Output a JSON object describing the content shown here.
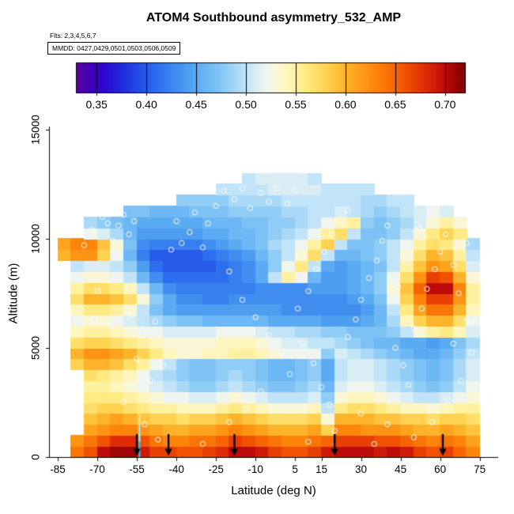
{
  "header": {
    "title": "ATOM4 Southbound asymmetry_532_AMP",
    "flights": "Flts: 2,3,4,5,6,7",
    "mmdd": "MMDD: 0427,0429,0501,0503,0506,0509"
  },
  "colorbar": {
    "domain": [
      0.33,
      0.72
    ],
    "ticks": [
      0.35,
      0.4,
      0.45,
      0.5,
      0.55,
      0.6,
      0.65,
      0.7
    ],
    "tick_labels": [
      "0.35",
      "0.40",
      "0.45",
      "0.50",
      "0.55",
      "0.60",
      "0.65",
      "0.70"
    ],
    "stops": [
      {
        "t": 0.0,
        "c": "#5A00A0"
      },
      {
        "t": 0.06,
        "c": "#3000CE"
      },
      {
        "t": 0.12,
        "c": "#1E2EE0"
      },
      {
        "t": 0.2,
        "c": "#2A6BEE"
      },
      {
        "t": 0.3,
        "c": "#55A8F2"
      },
      {
        "t": 0.38,
        "c": "#8CCBF6"
      },
      {
        "t": 0.44,
        "c": "#C6E6F8"
      },
      {
        "t": 0.49,
        "c": "#F2F6EE"
      },
      {
        "t": 0.53,
        "c": "#FFF8C8"
      },
      {
        "t": 0.58,
        "c": "#FFEE8C"
      },
      {
        "t": 0.64,
        "c": "#FFD452"
      },
      {
        "t": 0.7,
        "c": "#FFAE24"
      },
      {
        "t": 0.77,
        "c": "#FF850A"
      },
      {
        "t": 0.84,
        "c": "#F25702"
      },
      {
        "t": 0.9,
        "c": "#DE2A06"
      },
      {
        "t": 0.95,
        "c": "#BC0A0A"
      },
      {
        "t": 1.0,
        "c": "#7E0000"
      }
    ]
  },
  "axes": {
    "x": {
      "label": "Latitude (deg N)",
      "ticks": [
        -85,
        -70,
        -55,
        -40,
        -25,
        -10,
        5,
        15,
        30,
        45,
        60,
        75
      ],
      "range": [
        -88,
        82
      ]
    },
    "y": {
      "label": "Altitude (m)",
      "ticks": [
        0,
        5000,
        10000,
        15000
      ],
      "range": [
        0,
        15500
      ]
    }
  },
  "chart_data": {
    "type": "heatmap",
    "value_name": "asymmetry_532_AMP",
    "x_bin_centers": [
      -82.5,
      -77.5,
      -72.5,
      -67.5,
      -62.5,
      -57.5,
      -52.5,
      -47.5,
      -42.5,
      -37.5,
      -32.5,
      -27.5,
      -22.5,
      -17.5,
      -12.5,
      -7.5,
      -2.5,
      2.5,
      7.5,
      12.5,
      17.5,
      22.5,
      27.5,
      32.5,
      37.5,
      42.5,
      47.5,
      52.5,
      57.5,
      62.5,
      67.5,
      72.5
    ],
    "x_bin_width": 5,
    "y_bin_centers": [
      250,
      750,
      1250,
      1750,
      2250,
      2750,
      3250,
      3750,
      4250,
      4750,
      5250,
      5750,
      6250,
      6750,
      7250,
      7750,
      8250,
      8750,
      9250,
      9750,
      10250,
      10750,
      11250,
      11750,
      12250,
      12750
    ],
    "y_bin_width": 500,
    "values": [
      [
        null,
        0.64,
        0.66,
        0.7,
        0.71,
        0.71,
        0.69,
        0.67,
        0.67,
        0.66,
        0.66,
        0.67,
        0.68,
        0.7,
        0.7,
        0.69,
        0.67,
        0.66,
        0.66,
        0.67,
        0.69,
        0.7,
        0.7,
        0.7,
        0.69,
        0.7,
        0.69,
        0.67,
        0.66,
        0.67,
        0.65,
        0.63
      ],
      [
        null,
        0.62,
        0.64,
        0.66,
        0.68,
        0.68,
        0.66,
        0.64,
        0.63,
        0.63,
        0.64,
        0.64,
        0.65,
        0.67,
        0.66,
        0.65,
        0.64,
        0.63,
        0.63,
        0.64,
        0.65,
        0.67,
        0.67,
        0.67,
        0.66,
        0.66,
        0.65,
        0.64,
        0.63,
        0.64,
        0.63,
        0.61
      ],
      [
        null,
        null,
        0.61,
        0.62,
        0.63,
        0.63,
        0.62,
        0.61,
        0.6,
        0.6,
        0.61,
        0.61,
        0.62,
        0.63,
        0.62,
        0.61,
        0.6,
        0.6,
        0.6,
        0.61,
        0.58,
        0.63,
        0.63,
        0.62,
        0.62,
        0.62,
        0.61,
        0.6,
        0.6,
        0.61,
        0.6,
        0.59
      ],
      [
        null,
        null,
        0.59,
        0.6,
        0.61,
        0.6,
        0.59,
        0.58,
        0.58,
        0.57,
        0.58,
        0.58,
        0.59,
        0.6,
        0.59,
        0.58,
        0.57,
        0.57,
        0.57,
        0.58,
        0.53,
        0.6,
        0.6,
        0.6,
        0.59,
        0.59,
        0.58,
        0.58,
        0.57,
        0.58,
        0.58,
        0.57
      ],
      [
        null,
        null,
        0.57,
        0.58,
        0.58,
        0.57,
        0.56,
        0.55,
        0.55,
        0.54,
        0.54,
        0.54,
        0.55,
        0.56,
        0.55,
        0.54,
        0.53,
        0.53,
        0.53,
        0.54,
        0.5,
        0.56,
        0.57,
        0.57,
        0.56,
        0.55,
        0.54,
        0.54,
        0.53,
        0.54,
        0.55,
        0.55
      ],
      [
        null,
        null,
        0.56,
        0.56,
        0.56,
        0.55,
        0.54,
        0.53,
        0.52,
        0.52,
        0.51,
        0.51,
        0.52,
        0.53,
        0.52,
        0.51,
        0.5,
        0.5,
        0.5,
        0.51,
        0.48,
        0.53,
        0.54,
        0.54,
        0.53,
        0.52,
        0.51,
        0.5,
        0.5,
        0.51,
        0.52,
        0.53
      ],
      [
        null,
        null,
        0.55,
        0.55,
        0.54,
        0.53,
        0.52,
        0.51,
        0.5,
        0.49,
        0.48,
        0.48,
        0.49,
        0.5,
        0.49,
        0.48,
        0.47,
        0.47,
        0.48,
        0.49,
        0.46,
        0.51,
        0.52,
        0.52,
        0.51,
        0.5,
        0.49,
        0.48,
        0.47,
        0.48,
        0.5,
        0.52
      ],
      [
        null,
        null,
        0.57,
        0.56,
        0.55,
        0.54,
        0.52,
        0.5,
        0.49,
        0.48,
        0.47,
        0.47,
        0.48,
        0.49,
        0.48,
        0.47,
        0.46,
        0.46,
        0.47,
        0.48,
        0.45,
        0.5,
        0.51,
        0.51,
        0.5,
        0.49,
        0.48,
        0.47,
        0.46,
        0.47,
        0.49,
        0.51
      ],
      [
        null,
        0.58,
        0.6,
        0.6,
        0.59,
        0.57,
        0.55,
        0.52,
        0.5,
        0.48,
        0.47,
        0.47,
        0.48,
        0.48,
        0.48,
        0.47,
        0.46,
        0.46,
        0.47,
        0.48,
        0.45,
        0.5,
        0.51,
        0.51,
        0.5,
        0.49,
        0.48,
        0.47,
        0.46,
        0.47,
        0.49,
        0.51
      ],
      [
        null,
        0.6,
        0.62,
        0.62,
        0.61,
        0.6,
        0.58,
        0.56,
        0.54,
        0.53,
        0.53,
        0.54,
        0.54,
        0.55,
        0.55,
        0.54,
        0.53,
        0.52,
        0.52,
        0.52,
        0.48,
        0.51,
        0.5,
        0.49,
        0.48,
        0.47,
        0.46,
        0.45,
        0.45,
        0.46,
        0.48,
        0.5
      ],
      [
        null,
        0.57,
        0.58,
        0.58,
        0.57,
        0.56,
        0.55,
        0.54,
        0.53,
        0.53,
        0.53,
        0.53,
        0.54,
        0.54,
        0.54,
        0.53,
        0.52,
        0.51,
        0.51,
        0.5,
        0.5,
        0.49,
        0.48,
        0.47,
        0.46,
        0.46,
        0.45,
        0.45,
        0.44,
        0.45,
        0.47,
        0.49
      ],
      [
        null,
        0.54,
        0.55,
        0.55,
        0.54,
        0.53,
        0.52,
        0.52,
        0.51,
        0.51,
        0.51,
        0.51,
        0.52,
        0.52,
        0.52,
        0.51,
        0.5,
        0.5,
        0.49,
        0.49,
        0.48,
        0.48,
        0.47,
        0.47,
        0.47,
        0.48,
        0.5,
        0.53,
        0.55,
        0.56,
        0.54,
        0.51
      ],
      [
        null,
        0.52,
        0.53,
        0.53,
        0.52,
        0.51,
        0.5,
        0.49,
        0.48,
        0.47,
        0.47,
        0.46,
        0.46,
        0.46,
        0.46,
        0.46,
        0.45,
        0.45,
        0.45,
        0.45,
        0.44,
        0.44,
        0.44,
        0.45,
        0.46,
        0.49,
        0.54,
        0.58,
        0.6,
        0.6,
        0.57,
        0.52
      ],
      [
        null,
        0.54,
        0.56,
        0.56,
        0.55,
        0.53,
        0.5,
        0.47,
        0.45,
        0.44,
        0.44,
        0.44,
        0.44,
        0.44,
        0.44,
        0.44,
        0.44,
        0.43,
        0.43,
        0.43,
        0.43,
        0.43,
        0.43,
        0.44,
        0.46,
        0.5,
        0.56,
        0.61,
        0.64,
        0.64,
        0.6,
        0.54
      ],
      [
        null,
        0.57,
        0.6,
        0.6,
        0.59,
        0.57,
        0.53,
        0.48,
        0.45,
        0.43,
        0.43,
        0.42,
        0.42,
        0.43,
        0.43,
        0.43,
        0.43,
        0.43,
        0.43,
        0.43,
        0.43,
        0.43,
        0.44,
        0.45,
        0.47,
        0.52,
        0.58,
        0.63,
        0.67,
        0.67,
        0.62,
        0.55
      ],
      [
        null,
        0.55,
        0.57,
        0.57,
        0.56,
        0.54,
        0.5,
        0.46,
        0.43,
        0.42,
        0.42,
        0.42,
        0.42,
        0.42,
        0.42,
        0.43,
        0.43,
        0.43,
        0.43,
        0.44,
        0.44,
        0.44,
        0.45,
        0.46,
        0.48,
        0.53,
        0.59,
        0.65,
        0.7,
        0.7,
        0.63,
        0.55
      ],
      [
        null,
        0.52,
        0.53,
        0.53,
        0.52,
        0.5,
        0.46,
        0.43,
        0.41,
        0.41,
        0.41,
        0.41,
        0.41,
        0.42,
        0.43,
        0.45,
        0.5,
        0.55,
        0.52,
        0.46,
        0.44,
        0.44,
        0.45,
        0.46,
        0.48,
        0.52,
        0.57,
        0.62,
        0.67,
        0.66,
        0.6,
        0.53
      ],
      [
        null,
        0.5,
        0.51,
        0.51,
        0.5,
        0.48,
        0.44,
        0.41,
        0.4,
        0.4,
        0.4,
        0.4,
        0.41,
        0.42,
        0.43,
        0.45,
        0.48,
        0.52,
        0.56,
        0.5,
        0.45,
        0.44,
        0.45,
        0.46,
        0.47,
        0.5,
        0.55,
        0.59,
        0.62,
        0.61,
        0.57,
        0.51
      ],
      [
        0.6,
        0.62,
        0.62,
        0.58,
        0.52,
        0.46,
        0.42,
        0.4,
        0.4,
        0.4,
        0.4,
        0.41,
        0.42,
        0.43,
        0.44,
        0.46,
        0.48,
        0.5,
        0.53,
        0.57,
        0.5,
        0.46,
        0.46,
        0.47,
        0.48,
        0.5,
        0.53,
        0.57,
        0.6,
        0.59,
        0.55,
        0.5
      ],
      [
        0.61,
        0.63,
        0.63,
        0.59,
        0.53,
        0.47,
        0.43,
        0.42,
        0.42,
        0.42,
        0.42,
        0.43,
        0.44,
        0.45,
        0.46,
        0.47,
        0.49,
        0.5,
        0.52,
        0.55,
        0.58,
        0.5,
        0.47,
        0.47,
        0.48,
        0.5,
        0.52,
        0.55,
        0.57,
        0.56,
        0.53,
        0.49
      ],
      [
        null,
        null,
        0.52,
        0.51,
        0.49,
        0.46,
        0.44,
        0.44,
        0.44,
        0.44,
        0.44,
        0.45,
        0.45,
        0.46,
        0.46,
        0.47,
        0.48,
        0.49,
        0.5,
        0.52,
        0.55,
        0.57,
        0.5,
        0.47,
        0.47,
        0.48,
        0.5,
        0.53,
        0.56,
        0.58,
        0.56,
        null
      ],
      [
        null,
        null,
        0.49,
        0.48,
        0.47,
        0.46,
        0.45,
        0.45,
        0.45,
        0.45,
        0.45,
        0.46,
        0.46,
        0.46,
        0.47,
        0.47,
        0.48,
        0.48,
        0.49,
        0.5,
        0.52,
        0.54,
        0.55,
        0.48,
        0.47,
        0.48,
        0.49,
        0.51,
        0.53,
        0.55,
        0.53,
        null
      ],
      [
        null,
        null,
        null,
        null,
        null,
        0.47,
        0.47,
        0.46,
        0.46,
        0.46,
        0.47,
        0.47,
        0.47,
        0.48,
        0.48,
        0.48,
        0.48,
        0.49,
        0.49,
        0.5,
        0.5,
        0.51,
        0.5,
        0.49,
        0.48,
        0.49,
        0.5,
        0.51,
        0.52,
        0.51,
        null,
        null
      ],
      [
        null,
        null,
        null,
        null,
        null,
        null,
        null,
        null,
        null,
        0.48,
        0.48,
        0.48,
        0.48,
        0.49,
        0.49,
        0.49,
        0.49,
        0.5,
        0.5,
        0.5,
        0.5,
        0.5,
        0.5,
        0.49,
        0.49,
        0.5,
        0.5,
        null,
        null,
        null,
        null,
        null
      ],
      [
        null,
        null,
        null,
        null,
        null,
        null,
        null,
        null,
        null,
        null,
        null,
        null,
        0.5,
        0.5,
        0.5,
        0.5,
        0.51,
        0.51,
        0.51,
        0.51,
        0.5,
        0.5,
        0.5,
        0.5,
        null,
        null,
        null,
        null,
        null,
        null,
        null,
        null
      ],
      [
        null,
        null,
        null,
        null,
        null,
        null,
        null,
        null,
        null,
        null,
        null,
        null,
        null,
        null,
        0.5,
        0.51,
        0.51,
        0.51,
        0.51,
        0.5,
        null,
        null,
        null,
        null,
        null,
        null,
        null,
        null,
        null,
        null,
        null,
        null
      ]
    ]
  },
  "markers": {
    "arrows_lat": [
      -55,
      -43,
      -18,
      20,
      61
    ],
    "arrow_color": "#000000",
    "circle_color": "#FFFFFF",
    "circles": [
      [
        -75,
        9700
      ],
      [
        -72,
        10400
      ],
      [
        -70,
        7600
      ],
      [
        -68,
        11000
      ],
      [
        -66,
        10700
      ],
      [
        -64,
        9900
      ],
      [
        -62,
        10600
      ],
      [
        -60,
        11100
      ],
      [
        -58,
        10200
      ],
      [
        -56,
        10800
      ],
      [
        -71,
        6300
      ],
      [
        -65,
        6000
      ],
      [
        -57,
        6500
      ],
      [
        -53,
        5800
      ],
      [
        -48,
        6200
      ],
      [
        -55,
        4500
      ],
      [
        -50,
        3500
      ],
      [
        -45,
        4200
      ],
      [
        -60,
        2500
      ],
      [
        -52,
        1500
      ],
      [
        -47,
        800
      ],
      [
        -42,
        9500
      ],
      [
        -40,
        10800
      ],
      [
        -38,
        9800
      ],
      [
        -35,
        10300
      ],
      [
        -33,
        11200
      ],
      [
        -30,
        9600
      ],
      [
        -28,
        10700
      ],
      [
        -25,
        11500
      ],
      [
        -22,
        12200
      ],
      [
        -18,
        11800
      ],
      [
        -15,
        12300
      ],
      [
        -12,
        11400
      ],
      [
        -8,
        12100
      ],
      [
        -5,
        11700
      ],
      [
        -2,
        12300
      ],
      [
        2,
        11600
      ],
      [
        5,
        12200
      ],
      [
        -20,
        8500
      ],
      [
        -15,
        7200
      ],
      [
        -10,
        6400
      ],
      [
        -5,
        5600
      ],
      [
        0,
        4800
      ],
      [
        3,
        3800
      ],
      [
        -8,
        3000
      ],
      [
        -14,
        2200
      ],
      [
        6,
        6800
      ],
      [
        10,
        7600
      ],
      [
        13,
        8600
      ],
      [
        16,
        9400
      ],
      [
        19,
        10200
      ],
      [
        22,
        10900
      ],
      [
        25,
        11300
      ],
      [
        8,
        5200
      ],
      [
        12,
        4300
      ],
      [
        15,
        3200
      ],
      [
        18,
        2400
      ],
      [
        20,
        1200
      ],
      [
        25,
        5500
      ],
      [
        28,
        6300
      ],
      [
        30,
        7200
      ],
      [
        33,
        8200
      ],
      [
        36,
        9000
      ],
      [
        38,
        9900
      ],
      [
        40,
        10600
      ],
      [
        43,
        5000
      ],
      [
        46,
        4200
      ],
      [
        48,
        3300
      ],
      [
        50,
        5900
      ],
      [
        53,
        6800
      ],
      [
        55,
        7700
      ],
      [
        58,
        8600
      ],
      [
        60,
        9400
      ],
      [
        62,
        10200
      ],
      [
        65,
        8800
      ],
      [
        67,
        7500
      ],
      [
        70,
        6200
      ],
      [
        72,
        4800
      ],
      [
        68,
        3500
      ],
      [
        63,
        2600
      ],
      [
        57,
        1600
      ],
      [
        50,
        900
      ],
      [
        44,
        7800
      ],
      [
        47,
        8900
      ],
      [
        52,
        10500
      ],
      [
        35,
        600
      ],
      [
        10,
        700
      ],
      [
        -30,
        600
      ],
      [
        -20,
        1600
      ],
      [
        30,
        2000
      ],
      [
        40,
        1500
      ],
      [
        65,
        5200
      ],
      [
        70,
        9800
      ]
    ],
    "streak": {
      "lat": -54,
      "segments": [
        {
          "alt0": 0,
          "alt1": 700,
          "color": "#30B8F0"
        },
        {
          "alt0": 700,
          "alt1": 1500,
          "color": "#90E8F8"
        },
        {
          "alt0": 1500,
          "alt1": 2200,
          "color": "#FFE080"
        }
      ]
    }
  }
}
